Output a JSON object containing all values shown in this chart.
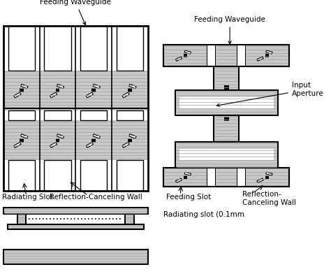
{
  "bg_color": "#ffffff",
  "gray_light": "#c8c8c8",
  "gray_med": "#a0a0a0",
  "black": "#000000",
  "white": "#ffffff",
  "labels": {
    "feeding_waveguide_top": "Feeding Waveguide",
    "feeding_waveguide_right": "Feeding Waveguide",
    "radiating_slot": "Radiating Slot",
    "reflection_canceling_wall_bottom": "Reflection-Canceling Wall",
    "reflection_canceling_wall_right": "Reflection-\nCanceling Wall",
    "input_aperture": "Input\nAperture",
    "feeding_slot": "Feeding Slot",
    "radiating_slot_label": "Radiating slot (0.1mm"
  }
}
